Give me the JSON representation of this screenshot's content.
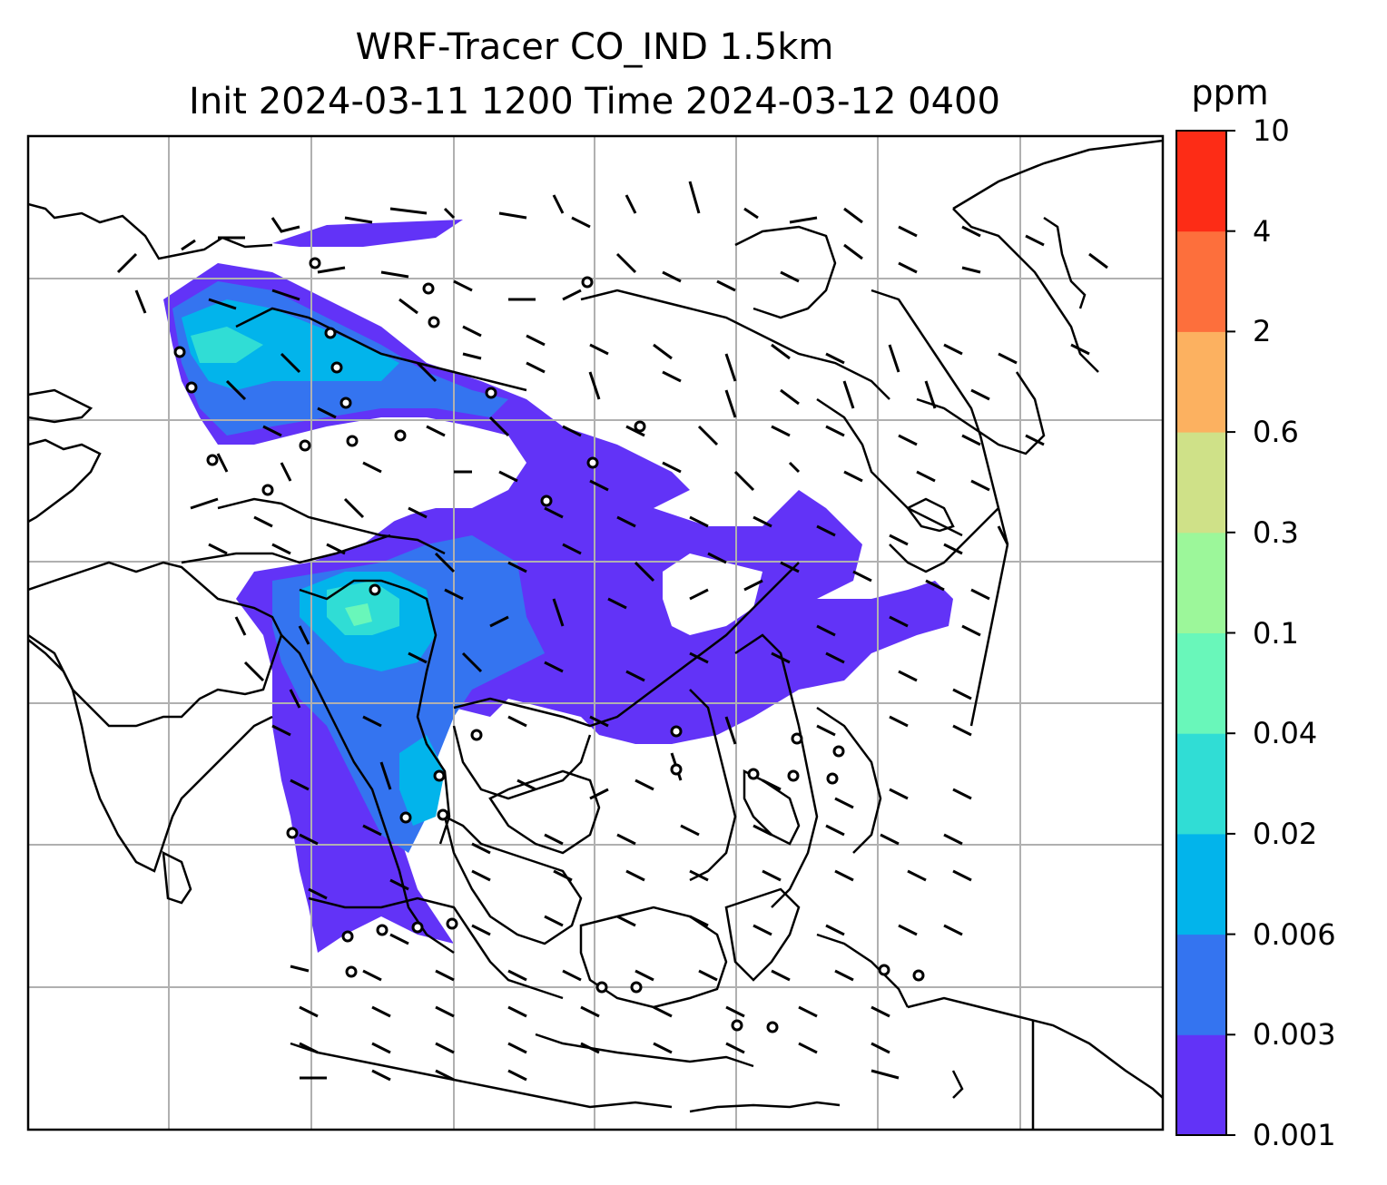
{
  "title": {
    "line1": "WRF-Tracer CO_IND 1.5km",
    "line2": "Init 2024-03-11 1200 Time 2024-03-12 0400"
  },
  "colorbar": {
    "unit": "ppm",
    "levels": [
      "0.001",
      "0.003",
      "0.006",
      "0.02",
      "0.04",
      "0.1",
      "0.3",
      "0.6",
      "2",
      "4",
      "10"
    ],
    "colors": [
      "#6233f7",
      "#3474f0",
      "#02b4eb",
      "#30ddd5",
      "#69f7ba",
      "#9cf79a",
      "#cfe188",
      "#fcb160",
      "#fd6f3c",
      "#fd2c16"
    ]
  },
  "map": {
    "field": "CO tracer concentration with wind barbs",
    "gridlines": true
  }
}
